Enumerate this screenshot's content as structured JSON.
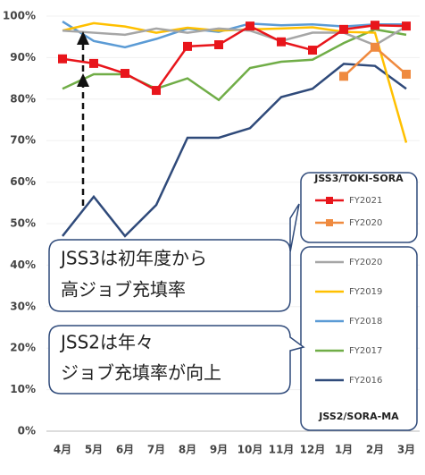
{
  "chart_data": {
    "type": "line",
    "categories": [
      "4月",
      "5月",
      "6月",
      "7月",
      "8月",
      "9月",
      "10月",
      "11月",
      "12月",
      "1月",
      "2月",
      "3月"
    ],
    "ylim": [
      0,
      100
    ],
    "yticks": [
      {
        "value": 0,
        "label": "0%"
      },
      {
        "value": 10,
        "label": "10%"
      },
      {
        "value": 20,
        "label": "20%"
      },
      {
        "value": 30,
        "label": "30%"
      },
      {
        "value": 40,
        "label": "40%"
      },
      {
        "value": 50,
        "label": "50%"
      },
      {
        "value": 60,
        "label": "60%"
      },
      {
        "value": 70,
        "label": "70%"
      },
      {
        "value": 80,
        "label": "80%"
      },
      {
        "value": 90,
        "label": "90%"
      },
      {
        "value": 100,
        "label": "100%"
      }
    ],
    "grid": true,
    "groups": [
      {
        "title": "JSS3/TOKI-SORA",
        "marker": "square",
        "series": [
          {
            "name": "FY2021",
            "color": "#e8151b",
            "values": [
              89.7,
              88.6,
              86.2,
              82.1,
              92.7,
              93.1,
              97.6,
              93.8,
              91.8,
              96.8,
              97.8,
              97.6
            ]
          },
          {
            "name": "FY2020",
            "color": "#ef8a3f",
            "values": [
              null,
              null,
              null,
              null,
              null,
              null,
              null,
              null,
              null,
              85.5,
              92.5,
              86
            ]
          }
        ]
      },
      {
        "title": "JSS2/SORA-MA",
        "marker": "none",
        "series": [
          {
            "name": "FY2020",
            "color": "#a6a6a6",
            "values": [
              96.5,
              96,
              95.5,
              97,
              96,
              97,
              96.5,
              94,
              96,
              96,
              93,
              97.5
            ]
          },
          {
            "name": "FY2019",
            "color": "#ffc000",
            "values": [
              96.5,
              98.3,
              97.5,
              96,
              97.2,
              96.5,
              96.8,
              97,
              97.3,
              96.2,
              96,
              69.5
            ]
          },
          {
            "name": "FY2018",
            "color": "#5b9bd5",
            "values": [
              98.7,
              94,
              92.5,
              94.5,
              97,
              96.2,
              98.2,
              97.8,
              98,
              97.5,
              98,
              98
            ]
          },
          {
            "name": "FY2017",
            "color": "#70ad47",
            "values": [
              82.5,
              86,
              86,
              82.5,
              85,
              79.8,
              87.5,
              89,
              89.5,
              93.5,
              96.8,
              95.5
            ]
          },
          {
            "name": "FY2016",
            "color": "#2f4a7a",
            "values": [
              47,
              56.5,
              47,
              54.5,
              70.7,
              70.7,
              73,
              80.5,
              82.5,
              88.5,
              88,
              82.5
            ]
          }
        ]
      }
    ],
    "annotations": [
      {
        "lines": [
          "JSS3は初年度から",
          "高ジョブ充填率"
        ]
      },
      {
        "lines": [
          "JSS2は年々",
          "ジョブ充填率が向上"
        ]
      }
    ]
  }
}
